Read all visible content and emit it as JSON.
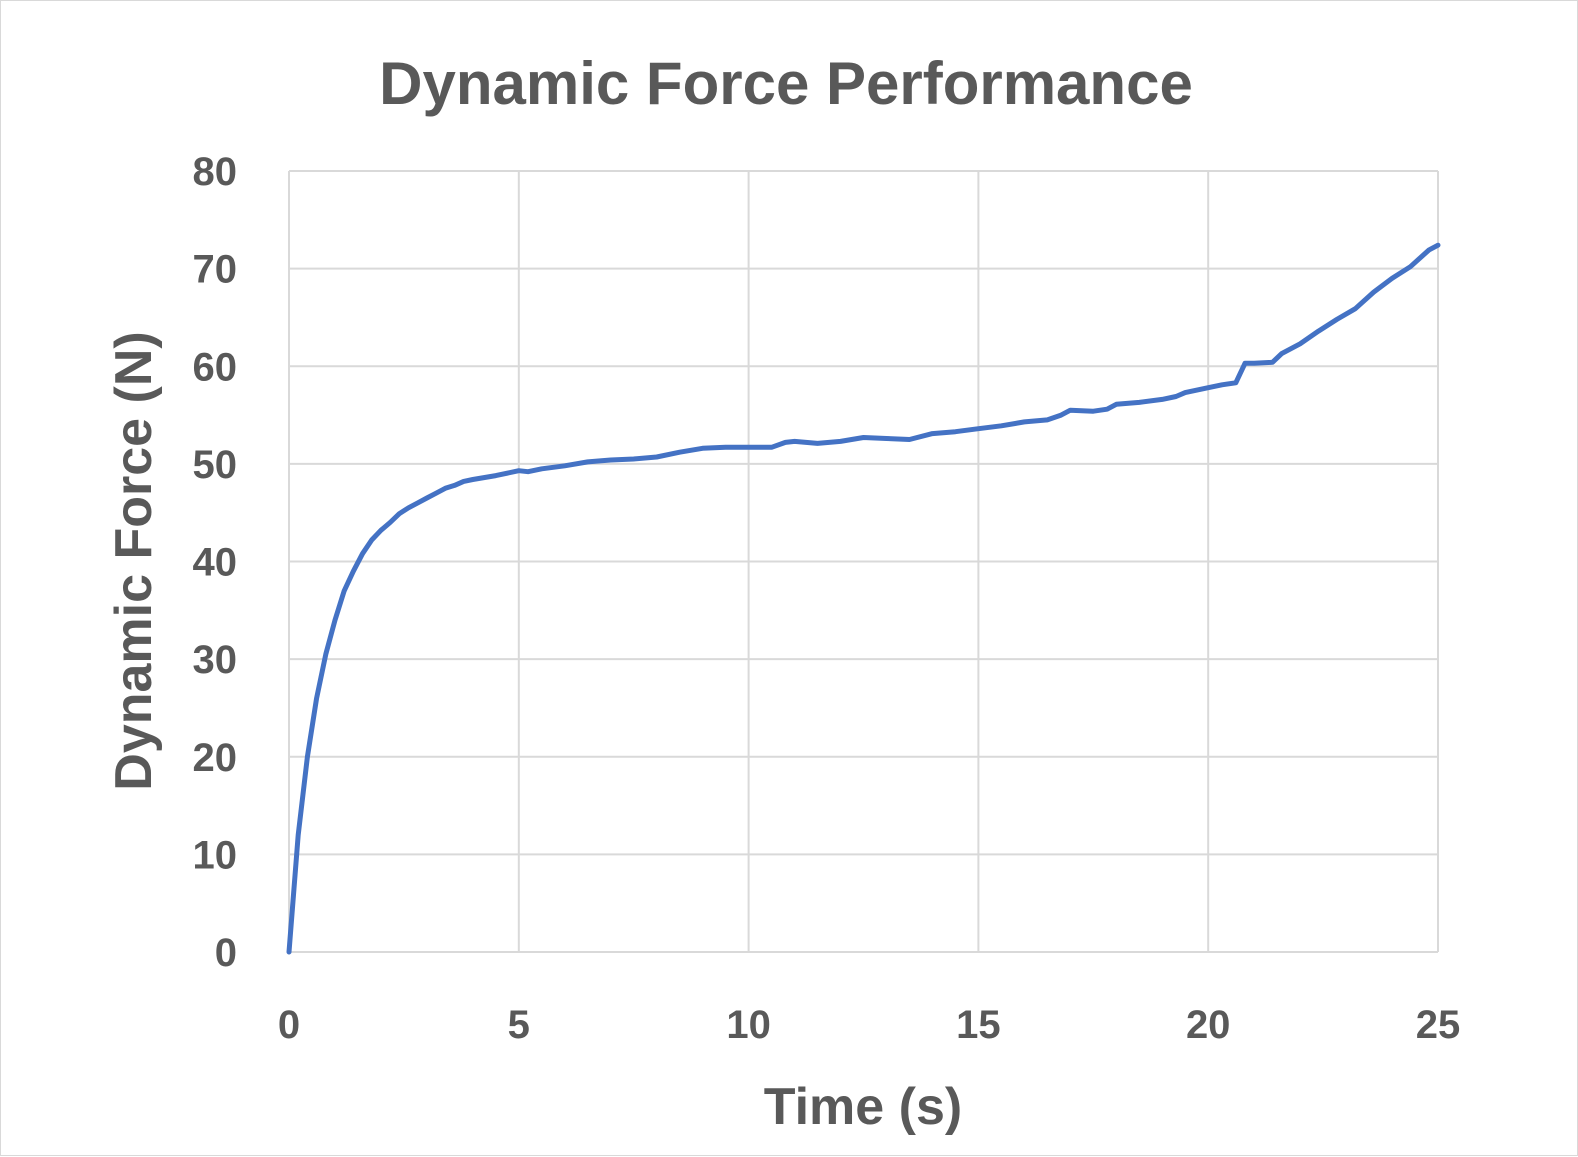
{
  "chart_data": {
    "type": "line",
    "title": "Dynamic Force Performance",
    "xlabel": "Time (s)",
    "ylabel": "Dynamic Force (N)",
    "xlim": [
      0,
      25
    ],
    "ylim": [
      0,
      80
    ],
    "xticks": [
      0,
      5,
      10,
      15,
      20,
      25
    ],
    "yticks": [
      0,
      10,
      20,
      30,
      40,
      50,
      60,
      70,
      80
    ],
    "grid": true,
    "legend": "none",
    "series_color": "#4472c4",
    "series": [
      {
        "x": [
          0,
          0.2,
          0.4,
          0.6,
          0.8,
          1.0,
          1.2,
          1.4,
          1.6,
          1.8,
          2.0,
          2.2,
          2.4,
          2.6,
          2.8,
          3.0,
          3.2,
          3.4,
          3.6,
          3.8,
          4.0,
          4.5,
          5.0,
          5.2,
          5.5,
          6.0,
          6.5,
          7.0,
          7.5,
          8.0,
          8.5,
          9.0,
          9.5,
          10.0,
          10.5,
          10.8,
          11.0,
          11.5,
          12.0,
          12.5,
          13.0,
          13.5,
          14.0,
          14.5,
          15.0,
          15.5,
          16.0,
          16.5,
          16.8,
          17.0,
          17.5,
          17.8,
          18.0,
          18.5,
          19.0,
          19.3,
          19.5,
          20.0,
          20.3,
          20.6,
          20.8,
          21.0,
          21.4,
          21.6,
          22.0,
          22.4,
          22.8,
          23.2,
          23.6,
          24.0,
          24.4,
          24.8,
          25.0
        ],
        "values": [
          0,
          12,
          20,
          26,
          30.5,
          34,
          37,
          39,
          40.8,
          42.2,
          43.2,
          44,
          44.9,
          45.5,
          46,
          46.5,
          47,
          47.5,
          47.8,
          48.2,
          48.4,
          48.8,
          49.3,
          49.2,
          49.5,
          49.8,
          50.2,
          50.4,
          50.5,
          50.7,
          51.2,
          51.6,
          51.7,
          51.7,
          51.7,
          52.2,
          52.3,
          52.1,
          52.3,
          52.7,
          52.6,
          52.5,
          53.1,
          53.3,
          53.6,
          53.9,
          54.3,
          54.5,
          55.0,
          55.5,
          55.4,
          55.6,
          56.1,
          56.3,
          56.6,
          56.9,
          57.3,
          57.8,
          58.1,
          58.3,
          60.3,
          60.3,
          60.4,
          61.3,
          62.3,
          63.6,
          64.8,
          65.9,
          67.6,
          69.0,
          70.2,
          71.9,
          72.4
        ]
      }
    ]
  }
}
